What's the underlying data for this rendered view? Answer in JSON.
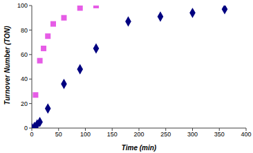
{
  "chart_data": {
    "type": "scatter",
    "x_label": "Time (min)",
    "y_label": "Turnover Number (TON)",
    "xlim": [
      0,
      400
    ],
    "xticks": [
      0,
      50,
      100,
      150,
      200,
      250,
      300,
      350,
      400
    ],
    "ylim": [
      0,
      100
    ],
    "yticks": [
      0,
      20,
      40,
      60,
      80,
      100
    ],
    "grid": false,
    "series": [
      {
        "color": "#e65ce6",
        "marker": "square",
        "x": [
          0,
          7,
          15,
          22,
          30,
          40,
          60,
          90,
          120
        ],
        "values": [
          0,
          27,
          55,
          65,
          75,
          85,
          90,
          98,
          100
        ]
      },
      {
        "color": "#000080",
        "marker": "diamond",
        "x": [
          0,
          5,
          10,
          15,
          30,
          60,
          90,
          120,
          180,
          240,
          300,
          360
        ],
        "values": [
          0,
          1,
          3,
          5,
          16,
          36,
          48,
          65,
          87,
          91,
          94,
          97
        ]
      }
    ]
  }
}
